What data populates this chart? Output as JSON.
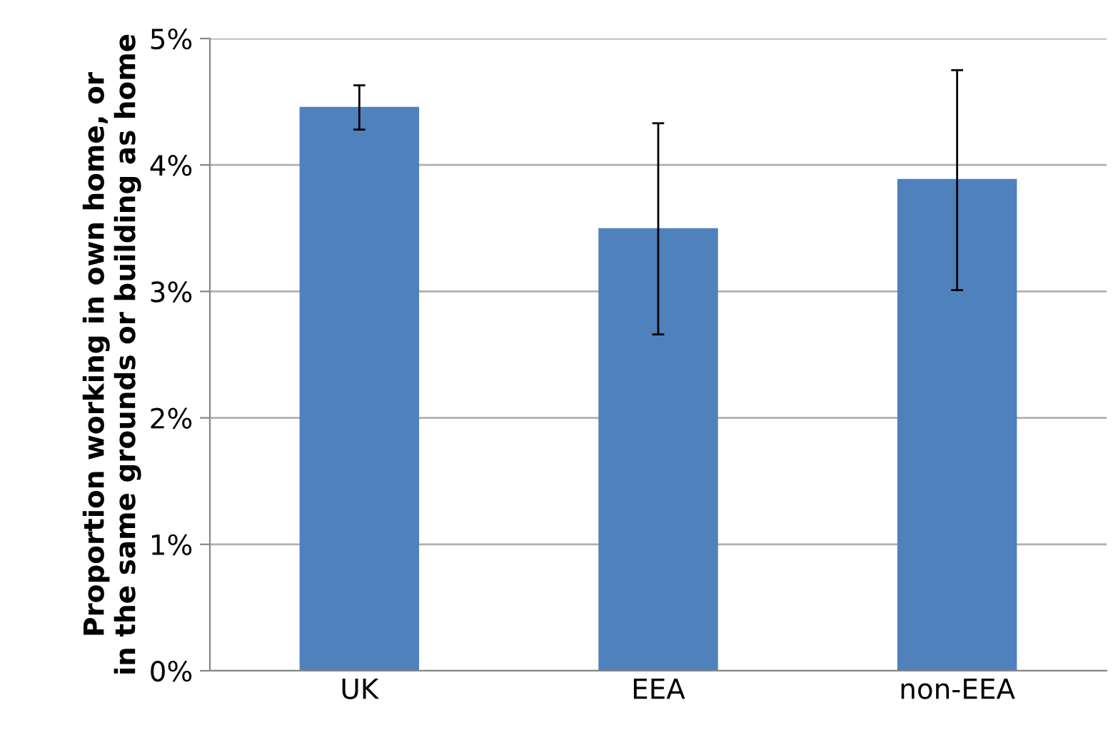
{
  "chart_data": {
    "type": "bar",
    "ylabel": "Proportion working in own home, or\nin the same grounds or building as home",
    "categories": [
      "UK",
      "EEA",
      "non-EEA"
    ],
    "values": [
      4.46,
      3.5,
      3.89
    ],
    "errors": [
      [
        4.28,
        4.63
      ],
      [
        2.66,
        4.33
      ],
      [
        3.01,
        4.75
      ]
    ],
    "color": "#4f81bd",
    "ylim": [
      0,
      5
    ],
    "yticks": [
      {
        "value": 0,
        "label": "0%"
      },
      {
        "value": 1,
        "label": "1%"
      },
      {
        "value": 2,
        "label": "2%"
      },
      {
        "value": 3,
        "label": "3%"
      },
      {
        "value": 4,
        "label": "4%"
      },
      {
        "value": 5,
        "label": "5%"
      }
    ],
    "grid": "y"
  }
}
